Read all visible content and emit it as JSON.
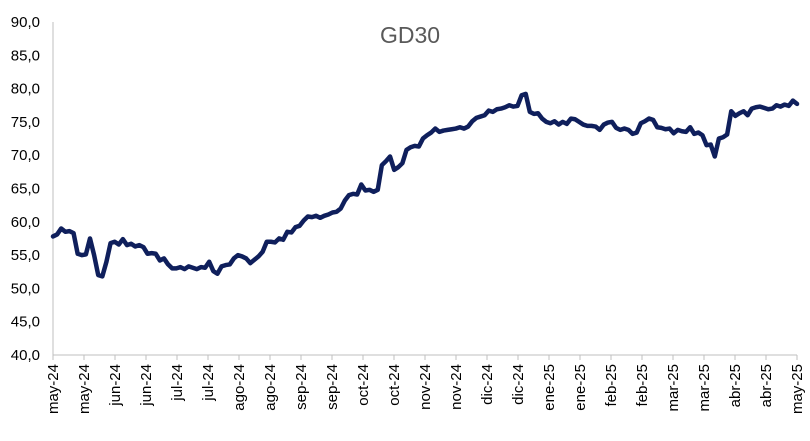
{
  "chart_data": {
    "type": "line",
    "title": "GD30",
    "xlabel": "",
    "ylabel": "",
    "ylim": [
      40,
      90
    ],
    "y_ticks": [
      "40,0",
      "45,0",
      "50,0",
      "55,0",
      "60,0",
      "65,0",
      "70,0",
      "75,0",
      "80,0",
      "85,0",
      "90,0"
    ],
    "x_tick_labels": [
      "may-24",
      "may-24",
      "jun-24",
      "jun-24",
      "jul-24",
      "jul-24",
      "ago-24",
      "ago-24",
      "sep-24",
      "sep-24",
      "oct-24",
      "oct-24",
      "nov-24",
      "nov-24",
      "dic-24",
      "dic-24",
      "ene-25",
      "ene-25",
      "feb-25",
      "feb-25",
      "mar-25",
      "mar-25",
      "abr-25",
      "abr-25",
      "may-25"
    ],
    "grid": false,
    "legend": "none",
    "line_color": "#0f1f5c",
    "series": [
      {
        "values": [
          57.8,
          58.1,
          59.0,
          58.5,
          58.6,
          58.3,
          55.2,
          55.0,
          55.1,
          57.5,
          55.0,
          52.0,
          51.8,
          54.0,
          56.8,
          57.0,
          56.6,
          57.4,
          56.5,
          56.7,
          56.3,
          56.5,
          56.2,
          55.2,
          55.3,
          55.2,
          54.2,
          54.5,
          53.6,
          53.0,
          53.0,
          53.2,
          52.9,
          53.3,
          53.1,
          52.9,
          53.2,
          53.1,
          54.0,
          52.6,
          52.2,
          53.3,
          53.5,
          53.6,
          54.5,
          55.0,
          54.8,
          54.5,
          53.8,
          54.3,
          54.8,
          55.5,
          57.0,
          57.0,
          56.9,
          57.5,
          57.3,
          58.5,
          58.4,
          59.2,
          59.4,
          60.2,
          60.8,
          60.7,
          60.9,
          60.6,
          60.9,
          61.1,
          61.4,
          61.5,
          62.0,
          63.2,
          64.0,
          64.2,
          64.1,
          65.6,
          64.7,
          64.8,
          64.5,
          64.8,
          68.5,
          69.1,
          69.8,
          67.8,
          68.2,
          68.8,
          70.8,
          71.2,
          71.4,
          71.3,
          72.5,
          73.0,
          73.4,
          74.0,
          73.5,
          73.7,
          73.8,
          73.9,
          74.0,
          74.2,
          74.0,
          74.3,
          75.1,
          75.6,
          75.8,
          76.0,
          76.7,
          76.5,
          76.9,
          77.0,
          77.2,
          77.5,
          77.3,
          77.4,
          79.0,
          79.2,
          76.5,
          76.2,
          76.3,
          75.5,
          75.0,
          74.8,
          75.1,
          74.6,
          75.0,
          74.7,
          75.5,
          75.4,
          75.0,
          74.6,
          74.4,
          74.4,
          74.3,
          73.8,
          74.6,
          74.9,
          75.0,
          74.1,
          73.8,
          74.0,
          73.8,
          73.2,
          73.4,
          74.8,
          75.1,
          75.5,
          75.3,
          74.2,
          74.1,
          73.9,
          74.0,
          73.3,
          73.8,
          73.6,
          73.5,
          74.2,
          73.2,
          73.4,
          73.0,
          71.5,
          71.6,
          69.8,
          72.5,
          72.7,
          73.1,
          76.6,
          75.9,
          76.3,
          76.6,
          76.0,
          77.0,
          77.2,
          77.3,
          77.1,
          76.9,
          77.0,
          77.5,
          77.3,
          77.6,
          77.4,
          78.2,
          77.7
        ]
      }
    ]
  }
}
